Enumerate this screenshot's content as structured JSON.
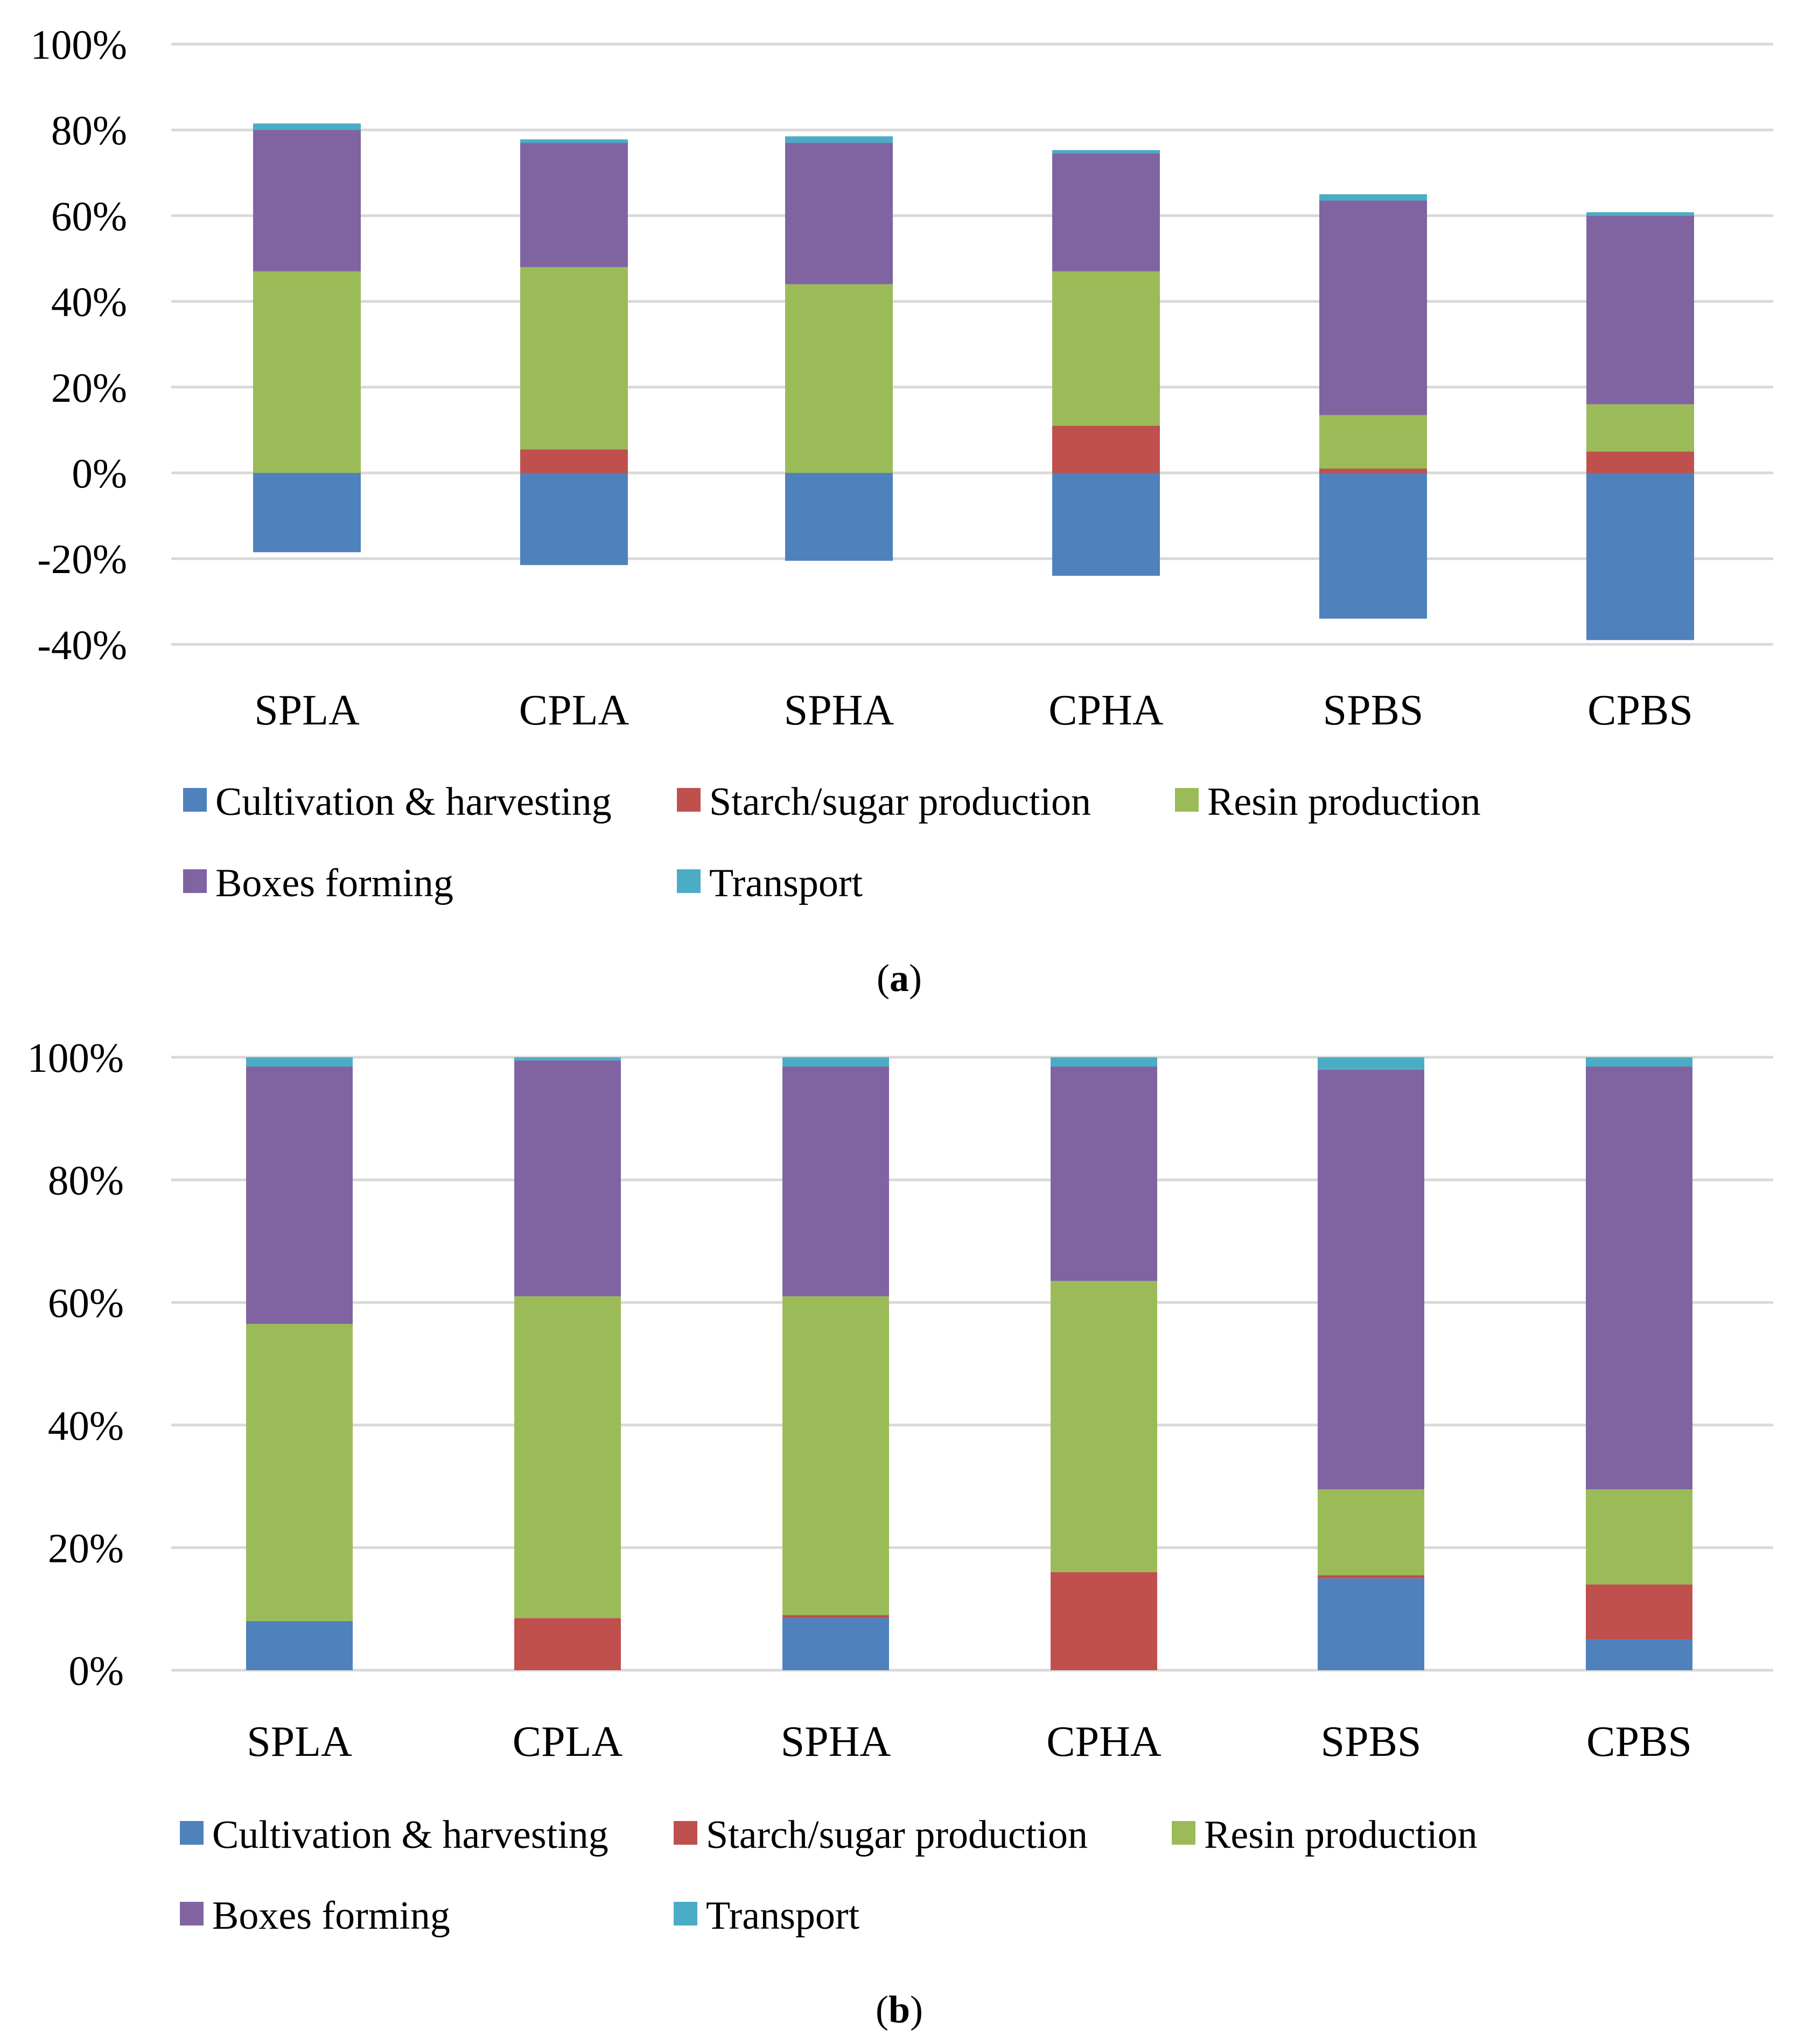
{
  "chart_data": [
    {
      "type": "stacked-bar",
      "panel_label": "a",
      "categories": [
        "SPLA",
        "CPLA",
        "SPHA",
        "CPHA",
        "SPBS",
        "CPBS"
      ],
      "yticks": [
        "100%",
        "80%",
        "60%",
        "40%",
        "20%",
        "0%",
        "-20%",
        "-40%"
      ],
      "ylim": [
        -40,
        100
      ],
      "series": [
        {
          "name": "Cultivation & harvesting",
          "color": "#4f81bd",
          "values": [
            -18.5,
            -21.5,
            -20.5,
            -24,
            -34,
            -39
          ]
        },
        {
          "name": "Starch/sugar production",
          "color": "#c0504d",
          "values": [
            0,
            5.5,
            0,
            11,
            1,
            5
          ]
        },
        {
          "name": "Resin production",
          "color": "#9bbb59",
          "values": [
            47,
            42.5,
            44,
            36,
            12.5,
            11
          ]
        },
        {
          "name": "Boxes forming",
          "color": "#8064a2",
          "values": [
            33,
            29,
            33,
            27.5,
            50,
            44
          ]
        },
        {
          "name": "Transport",
          "color": "#4bacc6",
          "values": [
            1.5,
            0.8,
            1.5,
            0.8,
            1.5,
            0.8
          ]
        }
      ]
    },
    {
      "type": "stacked-bar",
      "panel_label": "b",
      "categories": [
        "SPLA",
        "CPLA",
        "SPHA",
        "CPHA",
        "SPBS",
        "CPBS"
      ],
      "yticks": [
        "100%",
        "80%",
        "60%",
        "40%",
        "20%",
        "0%"
      ],
      "ylim": [
        0,
        100
      ],
      "series": [
        {
          "name": "Cultivation & harvesting",
          "color": "#4f81bd",
          "values": [
            8,
            0,
            8.5,
            0,
            15,
            5
          ]
        },
        {
          "name": "Starch/sugar production",
          "color": "#c0504d",
          "values": [
            0,
            8.5,
            0.5,
            16,
            0.5,
            9
          ]
        },
        {
          "name": "Resin production",
          "color": "#9bbb59",
          "values": [
            48.5,
            52.5,
            52,
            47.5,
            14,
            15.5
          ]
        },
        {
          "name": "Boxes forming",
          "color": "#8064a2",
          "values": [
            42,
            38.5,
            37.5,
            35,
            68.5,
            69
          ]
        },
        {
          "name": "Transport",
          "color": "#4bacc6",
          "values": [
            1.5,
            0.5,
            1.5,
            1.5,
            2,
            1.5
          ]
        }
      ]
    }
  ]
}
